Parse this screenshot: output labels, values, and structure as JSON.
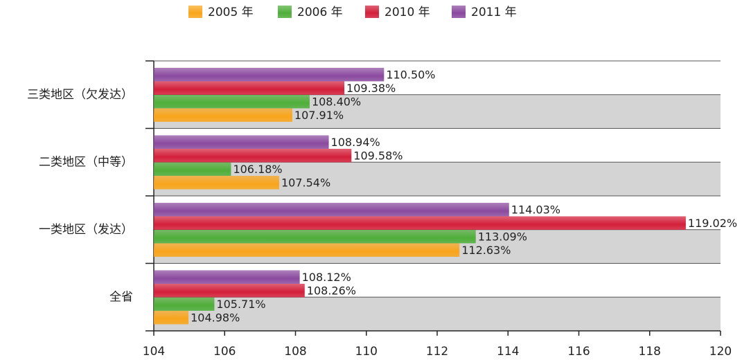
{
  "chart_data": {
    "type": "bar",
    "orientation": "horizontal",
    "categories": [
      "三类地区（欠发达）",
      "二类地区（中等）",
      "一类地区（发达）",
      "全省"
    ],
    "series": [
      {
        "name": "2005 年",
        "color": "#f9a51c",
        "values": [
          107.91,
          107.54,
          112.63,
          104.98
        ],
        "value_labels": [
          "107.91%",
          "107.54%",
          "112.63%",
          "104.98%"
        ]
      },
      {
        "name": "2006 年",
        "color": "#4fae3a",
        "values": [
          108.4,
          106.18,
          113.09,
          105.71
        ],
        "value_labels": [
          "108.40%",
          "106.18%",
          "113.09%",
          "105.71%"
        ]
      },
      {
        "name": "2010 年",
        "color": "#d31f3a",
        "values": [
          109.38,
          109.58,
          119.02,
          108.26
        ],
        "value_labels": [
          "109.38%",
          "109.58%",
          "119.02%",
          "108.26%"
        ]
      },
      {
        "name": "2011 年",
        "color": "#8a4a9e",
        "values": [
          110.5,
          108.94,
          114.03,
          108.12
        ],
        "value_labels": [
          "110.50%",
          "108.94%",
          "114.03%",
          "108.12%"
        ]
      }
    ],
    "xlim": [
      104,
      120
    ],
    "xticks": [
      104,
      106,
      108,
      110,
      112,
      114,
      116,
      118,
      120
    ]
  }
}
